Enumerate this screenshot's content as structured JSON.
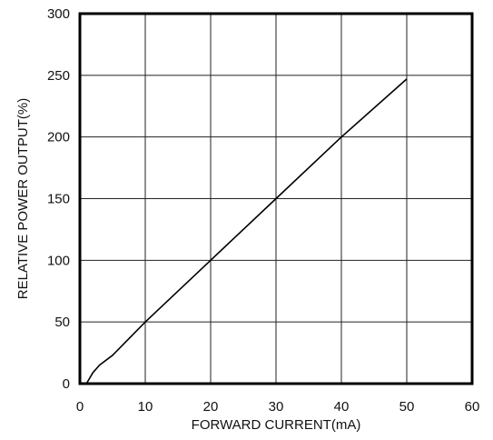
{
  "chart_data": {
    "type": "line",
    "title": "",
    "xlabel": "FORWARD CURRENT(mA)",
    "ylabel": "RELATIVE POWER OUTPUT(%)",
    "xlim": [
      0,
      60
    ],
    "ylim": [
      0,
      300
    ],
    "x_ticks": [
      0,
      10,
      20,
      30,
      40,
      50,
      60
    ],
    "y_ticks": [
      0,
      50,
      100,
      150,
      200,
      250,
      300
    ],
    "x_tick_labels": [
      "0",
      "10",
      "20",
      "30",
      "40",
      "50",
      "60"
    ],
    "y_tick_labels": [
      "0",
      "50",
      "100",
      "150",
      "200",
      "250",
      "300"
    ],
    "grid": true,
    "legend": "none",
    "series": [
      {
        "x": [
          1,
          2,
          3,
          5,
          10,
          20,
          30,
          40,
          50
        ],
        "y": [
          0,
          9,
          15,
          23,
          50,
          100,
          150,
          200,
          247
        ],
        "color": "#000000"
      }
    ]
  }
}
